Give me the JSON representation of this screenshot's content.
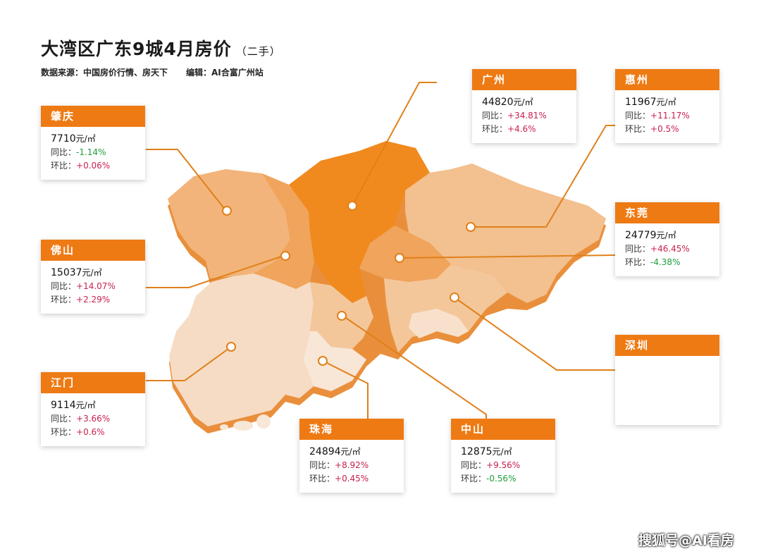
{
  "title": "大湾区广东9城4月房价",
  "subtitle": "（二手）",
  "source": "数据来源：中国房价行情、房天下",
  "editor": "编辑：AI合富广州站",
  "labels": {
    "yoy": "同比：",
    "mom": "环比：",
    "unit": "元/㎡"
  },
  "colors": {
    "accent": "#ee7a14",
    "up": "#c8214f",
    "down": "#1f9e3c"
  },
  "cities": {
    "guangzhou": {
      "name": "广州",
      "price": "44820",
      "yoy": "+34.81%",
      "mom": "+4.6%"
    },
    "huizhou": {
      "name": "惠州",
      "price": "11967",
      "yoy": "+11.17%",
      "mom": "+0.5%"
    },
    "zhaoqing": {
      "name": "肇庆",
      "price": "7710",
      "yoy": "-1.14%",
      "mom": "+0.06%"
    },
    "dongguan": {
      "name": "东莞",
      "price": "24779",
      "yoy": "+46.45%",
      "mom": "-4.38%"
    },
    "foshan": {
      "name": "佛山",
      "price": "15037",
      "yoy": "+14.07%",
      "mom": "+2.29%"
    },
    "shenzhen": {
      "name": "深圳"
    },
    "jiangmen": {
      "name": "江门",
      "price": "9114",
      "yoy": "+3.66%",
      "mom": "+0.6%"
    },
    "zhuhai": {
      "name": "珠海",
      "price": "24894",
      "yoy": "+8.92%",
      "mom": "+0.45%"
    },
    "zhongshan": {
      "name": "中山",
      "price": "12875",
      "yoy": "+9.56%",
      "mom": "-0.56%"
    }
  },
  "watermark": "搜狐号@AI看房"
}
